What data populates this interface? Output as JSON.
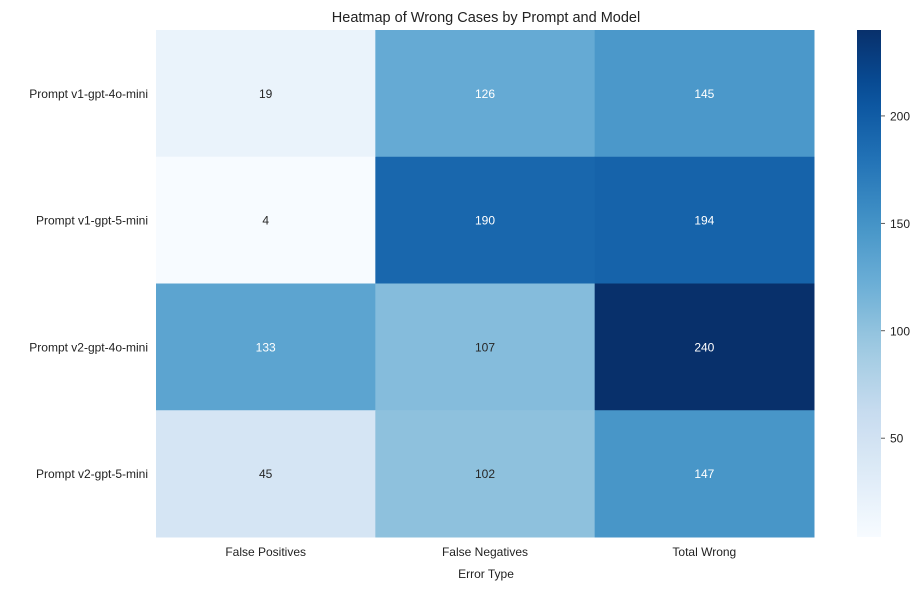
{
  "chart_data": {
    "type": "heatmap",
    "title": "Heatmap of Wrong Cases by Prompt and Model",
    "xlabel": "Error Type",
    "ylabel": "",
    "x_categories": [
      "False Positives",
      "False Negatives",
      "Total Wrong"
    ],
    "y_categories": [
      "Prompt v1-gpt-4o-mini",
      "Prompt v1-gpt-5-mini",
      "Prompt v2-gpt-4o-mini",
      "Prompt v2-gpt-5-mini"
    ],
    "values": [
      [
        19,
        126,
        145
      ],
      [
        4,
        190,
        194
      ],
      [
        133,
        107,
        240
      ],
      [
        45,
        102,
        147
      ]
    ],
    "colormap": "Blues",
    "color_range": [
      4,
      240
    ],
    "colorbar_ticks": [
      "50",
      "100",
      "150",
      "200"
    ],
    "colorbar_tick_values": [
      50,
      100,
      150,
      200
    ],
    "annotations": true,
    "grid": false
  }
}
